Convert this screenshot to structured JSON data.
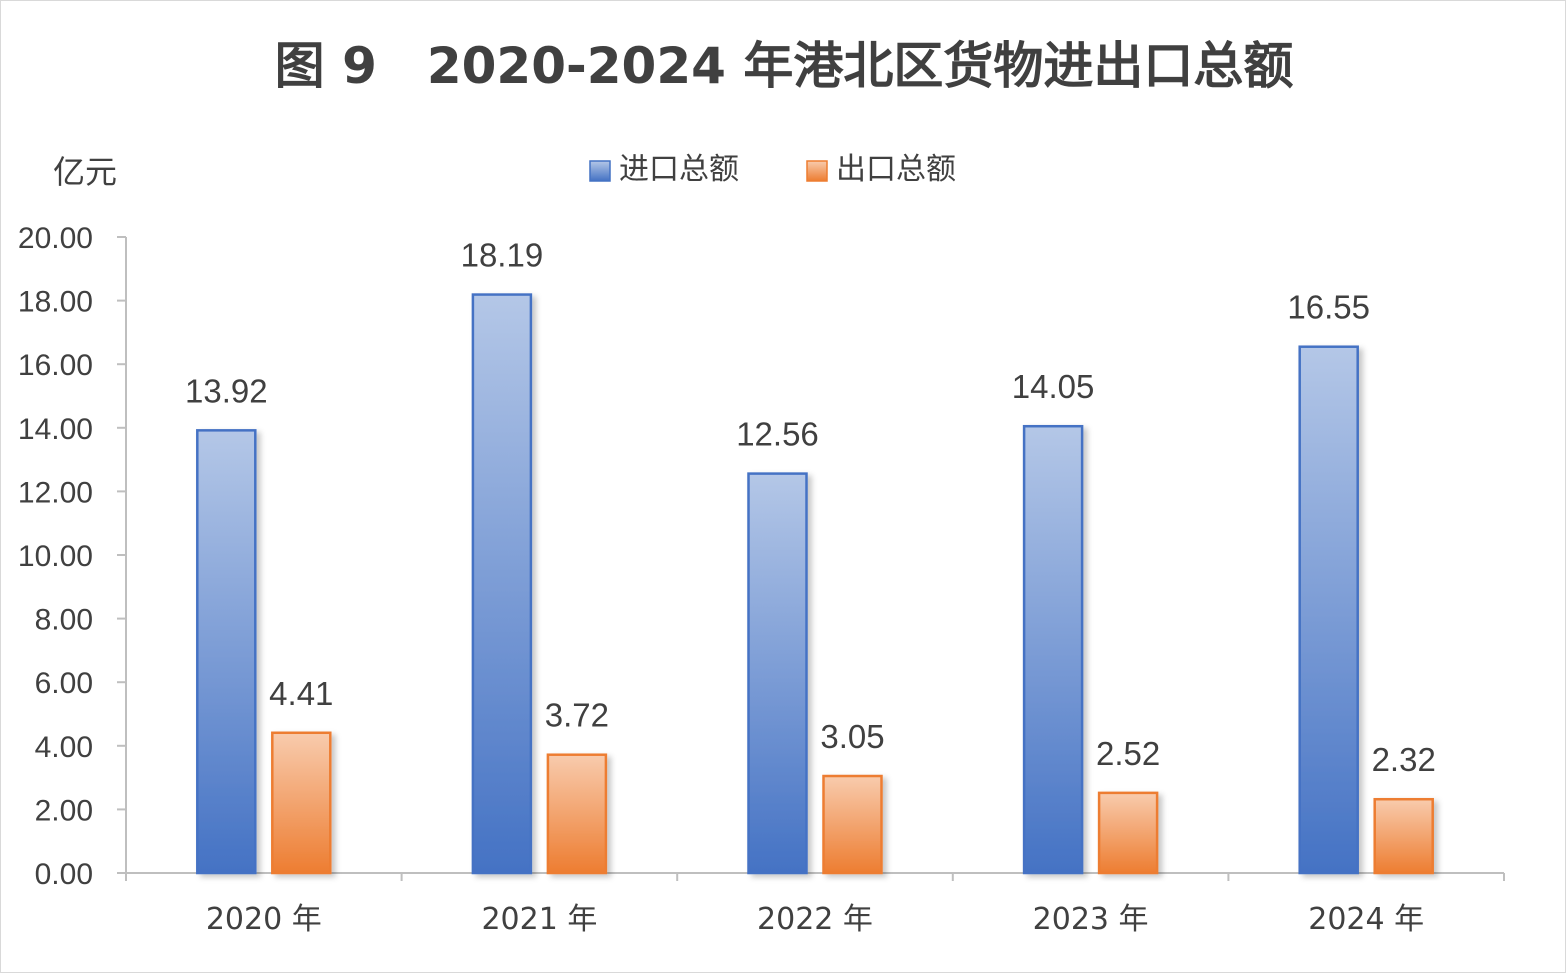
{
  "chart_data": {
    "type": "bar",
    "title": "图 9　2020-2024 年港北区货物进出口总额",
    "y_unit": "亿元",
    "categories": [
      "2020 年",
      "2021 年",
      "2022 年",
      "2023 年",
      "2024 年"
    ],
    "series": [
      {
        "name": "进口总额",
        "values": [
          13.92,
          18.19,
          12.56,
          14.05,
          16.55
        ],
        "color": "#4472C4",
        "color_light": "#B4C7E7"
      },
      {
        "name": "出口总额",
        "values": [
          4.41,
          3.72,
          3.05,
          2.52,
          2.32
        ],
        "color": "#ED7D31",
        "color_light": "#F8CBAD"
      }
    ],
    "ylim": [
      0,
      20
    ],
    "y_ticks": [
      "0.00",
      "2.00",
      "4.00",
      "6.00",
      "8.00",
      "10.00",
      "12.00",
      "14.00",
      "16.00",
      "18.00",
      "20.00"
    ],
    "grid": false,
    "legend_position": "top"
  }
}
